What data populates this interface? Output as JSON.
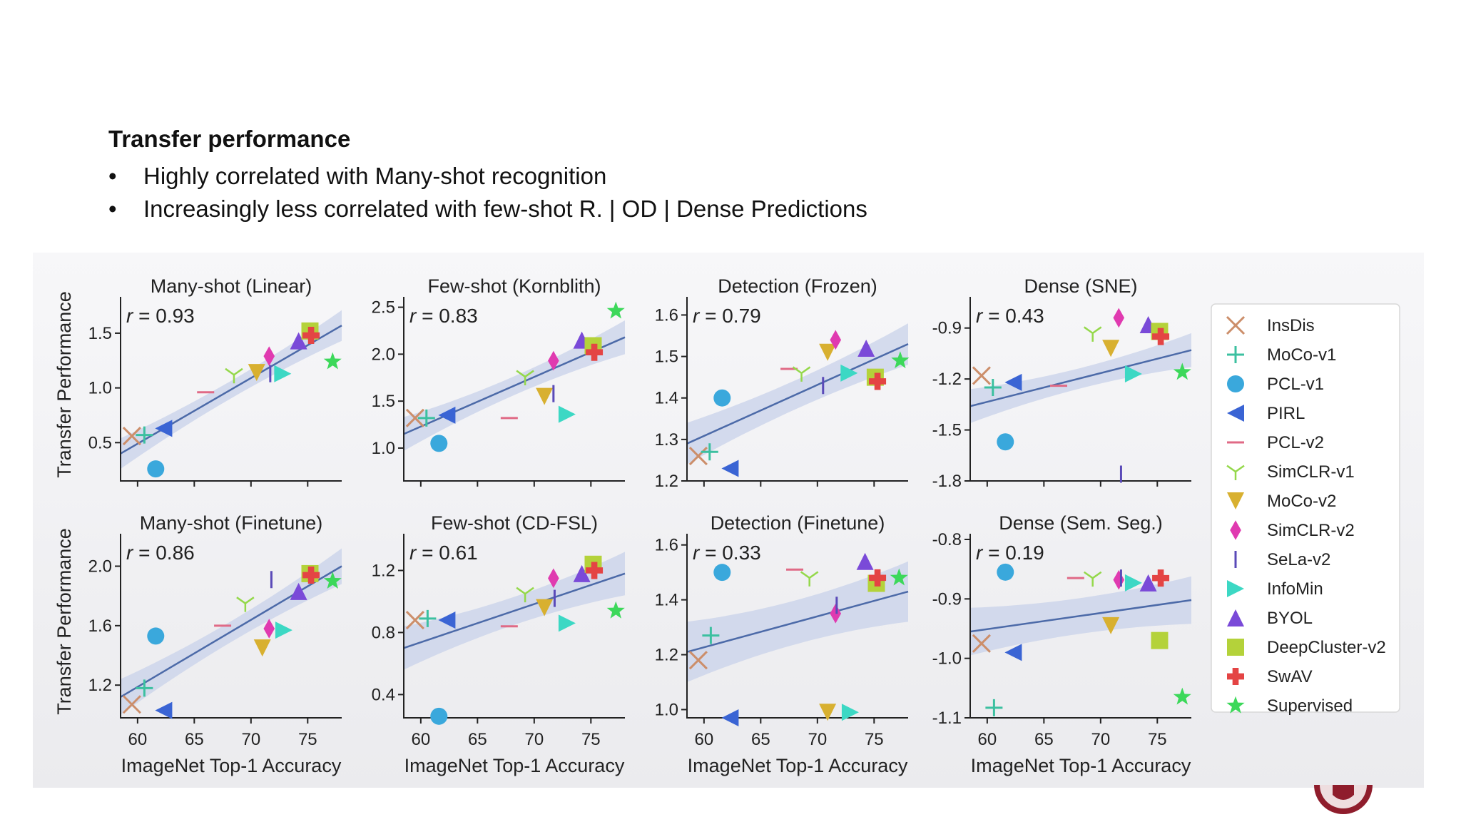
{
  "slide": {
    "title": "Transfer performance",
    "bullets": [
      {
        "marker": "•",
        "text": "Highly correlated with Many-shot recognition"
      },
      {
        "marker": "•",
        "text": "Increasingly less correlated with few-shot R. | OD | Dense Predictions"
      }
    ]
  },
  "colors": {
    "regression_line": "#4c6aa8",
    "confidence_band": "#c8d2ea"
  },
  "methods": [
    {
      "name": "InsDis",
      "marker": "x",
      "color": "#cc8e6a"
    },
    {
      "name": "MoCo-v1",
      "marker": "plus",
      "color": "#3cc0a0"
    },
    {
      "name": "PCL-v1",
      "marker": "circle",
      "color": "#3aa8dc"
    },
    {
      "name": "PIRL",
      "marker": "triangle-left",
      "color": "#3a64d4"
    },
    {
      "name": "PCL-v2",
      "marker": "hline",
      "color": "#e06a86"
    },
    {
      "name": "SimCLR-v1",
      "marker": "tri-down",
      "color": "#94d84a"
    },
    {
      "name": "MoCo-v2",
      "marker": "triangle-down",
      "color": "#d8b030"
    },
    {
      "name": "SimCLR-v2",
      "marker": "diamond",
      "color": "#e03ab0"
    },
    {
      "name": "SeLa-v2",
      "marker": "vline",
      "color": "#5a4ab8"
    },
    {
      "name": "InfoMin",
      "marker": "triangle-right",
      "color": "#3cd8c4"
    },
    {
      "name": "BYOL",
      "marker": "triangle-up",
      "color": "#7a4ad8"
    },
    {
      "name": "DeepCluster-v2",
      "marker": "square",
      "color": "#b4d23a"
    },
    {
      "name": "SwAV",
      "marker": "cross",
      "color": "#e44444"
    },
    {
      "name": "Supervised",
      "marker": "star",
      "color": "#3cd85a"
    }
  ],
  "chart_data": [
    {
      "type": "scatter",
      "title": "Many-shot (Linear)",
      "annotation": "= 0.93",
      "ylabel": "Transfer Performance",
      "xlabel": "",
      "xlim": [
        58.5,
        78
      ],
      "ylim": [
        0.15,
        1.78
      ],
      "xticks": [
        60,
        65,
        70,
        75
      ],
      "yticks": [
        0.5,
        1.0,
        1.5
      ],
      "ytick_labels": [
        "0.5",
        "1.0",
        "1.5"
      ],
      "fit": [
        [
          58.5,
          0.4
        ],
        [
          78,
          1.57
        ]
      ],
      "band": [
        0.14,
        0.08
      ],
      "points": [
        [
          59.5,
          0.56
        ],
        [
          60.6,
          0.57
        ],
        [
          61.6,
          0.26
        ],
        [
          62.3,
          0.63
        ],
        [
          66,
          0.96
        ],
        [
          68.5,
          1.12
        ],
        [
          70.5,
          1.14
        ],
        [
          71.6,
          1.29
        ],
        [
          71.7,
          1.13
        ],
        [
          72.8,
          1.13
        ],
        [
          74.2,
          1.43
        ],
        [
          75.2,
          1.52
        ],
        [
          75.3,
          1.48
        ],
        [
          77.2,
          1.24
        ]
      ]
    },
    {
      "type": "scatter",
      "title": "Few-shot (Kornblith)",
      "annotation": "= 0.83",
      "ylabel": "",
      "xlabel": "",
      "xlim": [
        58.5,
        78
      ],
      "ylim": [
        0.65,
        2.55
      ],
      "xticks": [
        60,
        65,
        70,
        75
      ],
      "yticks": [
        1.0,
        1.5,
        2.0,
        2.5
      ],
      "ytick_labels": [
        "1.0",
        "1.5",
        "2.0",
        "2.5"
      ],
      "fit": [
        [
          58.5,
          1.15
        ],
        [
          78,
          2.18
        ]
      ],
      "band": [
        0.18,
        0.1
      ],
      "points": [
        [
          59.5,
          1.32
        ],
        [
          60.5,
          1.32
        ],
        [
          61.6,
          1.05
        ],
        [
          62.3,
          1.35
        ],
        [
          67.8,
          1.32
        ],
        [
          69.2,
          1.76
        ],
        [
          70.9,
          1.55
        ],
        [
          71.7,
          1.93
        ],
        [
          71.7,
          1.58
        ],
        [
          72.9,
          1.36
        ],
        [
          74.2,
          2.15
        ],
        [
          75.2,
          2.09
        ],
        [
          75.3,
          2.02
        ],
        [
          77.2,
          2.46
        ]
      ]
    },
    {
      "type": "scatter",
      "title": "Detection (Frozen)",
      "annotation": "= 0.79",
      "ylabel": "",
      "xlabel": "",
      "xlim": [
        58.5,
        78
      ],
      "ylim": [
        1.2,
        1.63
      ],
      "xticks": [
        60,
        65,
        70,
        75
      ],
      "yticks": [
        1.2,
        1.3,
        1.4,
        1.5,
        1.6
      ],
      "ytick_labels": [
        "1.2",
        "1.3",
        "1.4",
        "1.5",
        "1.6"
      ],
      "fit": [
        [
          58.5,
          1.29
        ],
        [
          78,
          1.53
        ]
      ],
      "band": [
        0.05,
        0.035
      ],
      "points": [
        [
          59.5,
          1.26
        ],
        [
          60.5,
          1.27
        ],
        [
          61.6,
          1.4
        ],
        [
          62.3,
          1.23
        ],
        [
          67.5,
          1.47
        ],
        [
          68.6,
          1.46
        ],
        [
          70.9,
          1.51
        ],
        [
          71.6,
          1.54
        ],
        [
          70.5,
          1.43
        ],
        [
          72.8,
          1.46
        ],
        [
          74.3,
          1.52
        ],
        [
          75.1,
          1.45
        ],
        [
          75.3,
          1.44
        ],
        [
          77.3,
          1.49
        ]
      ]
    },
    {
      "type": "scatter",
      "title": "Dense (SNE)",
      "annotation": "= 0.43",
      "ylabel": "",
      "xlabel": "",
      "xlim": [
        58.5,
        78
      ],
      "ylim": [
        -1.8,
        -0.75
      ],
      "xticks": [
        60,
        65,
        70,
        75
      ],
      "yticks": [
        -1.8,
        -1.5,
        -1.2,
        -0.9
      ],
      "ytick_labels": [
        "-1.8",
        "-1.5",
        "-1.2",
        "-0.9"
      ],
      "fit": [
        [
          58.5,
          -1.36
        ],
        [
          78,
          -1.03
        ]
      ],
      "band": [
        0.1,
        0.06
      ],
      "points": [
        [
          59.5,
          -1.18
        ],
        [
          60.5,
          -1.25
        ],
        [
          61.6,
          -1.57
        ],
        [
          62.3,
          -1.22
        ],
        [
          66.3,
          -1.24
        ],
        [
          69.3,
          -0.93
        ],
        [
          70.9,
          -1.02
        ],
        [
          71.6,
          -0.84
        ],
        [
          71.8,
          -1.76
        ],
        [
          72.9,
          -1.17
        ],
        [
          74.2,
          -0.88
        ],
        [
          75.2,
          -0.92
        ],
        [
          75.3,
          -0.95
        ],
        [
          77.2,
          -1.16
        ]
      ]
    },
    {
      "type": "scatter",
      "title": "Many-shot (Finetune)",
      "annotation": "= 0.86",
      "ylabel": "Transfer Performance",
      "xlabel": "ImageNet Top-1 Accuracy",
      "xlim": [
        58.5,
        78
      ],
      "ylim": [
        0.98,
        2.18
      ],
      "xticks": [
        60,
        65,
        70,
        75
      ],
      "yticks": [
        1.2,
        1.6,
        2.0
      ],
      "ytick_labels": [
        "1.2",
        "1.6",
        "2.0"
      ],
      "fit": [
        [
          58.5,
          1.12
        ],
        [
          78,
          2.0
        ]
      ],
      "band": [
        0.12,
        0.07
      ],
      "points": [
        [
          59.5,
          1.07
        ],
        [
          60.6,
          1.18
        ],
        [
          61.6,
          1.53
        ],
        [
          62.3,
          1.03
        ],
        [
          67.5,
          1.6
        ],
        [
          69.5,
          1.75
        ],
        [
          71,
          1.45
        ],
        [
          71.6,
          1.58
        ],
        [
          71.8,
          1.91
        ],
        [
          72.9,
          1.57
        ],
        [
          74.2,
          1.83
        ],
        [
          75.2,
          1.95
        ],
        [
          75.3,
          1.94
        ],
        [
          77.2,
          1.9
        ]
      ]
    },
    {
      "type": "scatter",
      "title": "Few-shot (CD-FSL)",
      "annotation": "= 0.61",
      "ylabel": "",
      "xlabel": "ImageNet Top-1 Accuracy",
      "xlim": [
        58.5,
        78
      ],
      "ylim": [
        0.25,
        1.4
      ],
      "xticks": [
        60,
        65,
        70,
        75
      ],
      "yticks": [
        0.4,
        0.8,
        1.2
      ],
      "ytick_labels": [
        "0.4",
        "0.8",
        "1.2"
      ],
      "fit": [
        [
          58.5,
          0.7
        ],
        [
          78,
          1.18
        ]
      ],
      "band": [
        0.14,
        0.09
      ],
      "points": [
        [
          59.5,
          0.88
        ],
        [
          60.6,
          0.89
        ],
        [
          61.6,
          0.26
        ],
        [
          62.3,
          0.88
        ],
        [
          67.8,
          0.84
        ],
        [
          69.2,
          1.05
        ],
        [
          70.9,
          0.96
        ],
        [
          71.7,
          1.15
        ],
        [
          71.8,
          1.02
        ],
        [
          72.9,
          0.86
        ],
        [
          74.2,
          1.18
        ],
        [
          75.2,
          1.24
        ],
        [
          75.3,
          1.2
        ],
        [
          77.2,
          0.94
        ]
      ]
    },
    {
      "type": "scatter",
      "title": "Detection (Finetune)",
      "annotation": "= 0.33",
      "ylabel": "",
      "xlabel": "ImageNet Top-1 Accuracy",
      "xlim": [
        58.5,
        78
      ],
      "ylim": [
        0.97,
        1.62
      ],
      "xticks": [
        60,
        65,
        70,
        75
      ],
      "yticks": [
        1.0,
        1.2,
        1.4,
        1.6
      ],
      "ytick_labels": [
        "1.0",
        "1.2",
        "1.4",
        "1.6"
      ],
      "fit": [
        [
          58.5,
          1.21
        ],
        [
          78,
          1.43
        ]
      ],
      "band": [
        0.11,
        0.08
      ],
      "points": [
        [
          59.5,
          1.18
        ],
        [
          60.6,
          1.27
        ],
        [
          61.6,
          1.5
        ],
        [
          62.3,
          0.97
        ],
        [
          68,
          1.51
        ],
        [
          69.3,
          1.48
        ],
        [
          70.9,
          0.99
        ],
        [
          71.6,
          1.35
        ],
        [
          71.7,
          1.38
        ],
        [
          72.9,
          0.99
        ],
        [
          74.2,
          1.54
        ],
        [
          75.2,
          1.46
        ],
        [
          75.3,
          1.48
        ],
        [
          77.2,
          1.48
        ]
      ]
    },
    {
      "type": "scatter",
      "title": "Dense (Sem. Seg.)",
      "annotation": "= 0.19",
      "ylabel": "",
      "xlabel": "ImageNet Top-1 Accuracy",
      "xlim": [
        58.5,
        78
      ],
      "ylim": [
        -1.1,
        -0.8
      ],
      "xticks": [
        60,
        65,
        70,
        75
      ],
      "yticks": [
        -1.1,
        -1.0,
        -0.9,
        -0.8
      ],
      "ytick_labels": [
        "-1.1",
        "-1.0",
        "-0.9",
        "-0.8"
      ],
      "fit": [
        [
          58.5,
          -0.955
        ],
        [
          78,
          -0.902
        ]
      ],
      "band": [
        0.04,
        0.03
      ],
      "points": [
        [
          59.5,
          -0.975
        ],
        [
          60.6,
          -1.083
        ],
        [
          61.6,
          -0.855
        ],
        [
          62.3,
          -0.99
        ],
        [
          67.8,
          -0.865
        ],
        [
          69.3,
          -0.865
        ],
        [
          70.9,
          -0.945
        ],
        [
          71.6,
          -0.868
        ],
        [
          71.8,
          -0.865
        ],
        [
          72.9,
          -0.873
        ],
        [
          74.2,
          -0.873
        ],
        [
          75.2,
          -0.97
        ],
        [
          75.3,
          -0.865
        ],
        [
          77.2,
          -1.065
        ]
      ]
    }
  ]
}
